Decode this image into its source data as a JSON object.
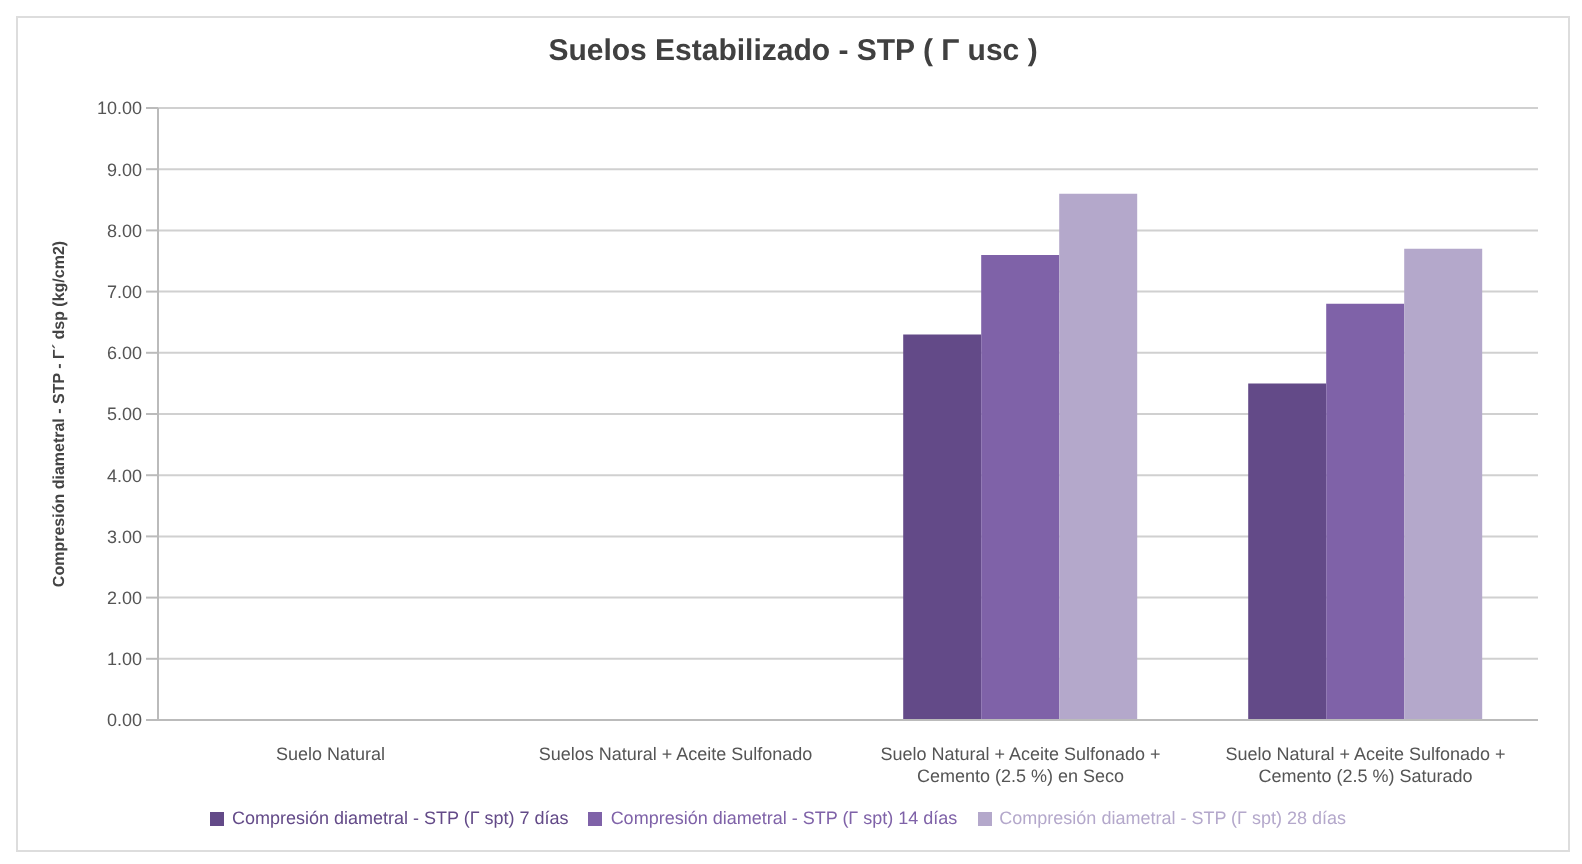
{
  "chart_data": {
    "type": "bar",
    "title": "Suelos Estabilizado - STP ( Γ usc )",
    "ylabel": "Compresión diametral - STP - Γ´ dsp (kg/cm2)",
    "categories": [
      "Suelo Natural",
      "Suelos Natural + Aceite Sulfonado",
      "Suelo Natural + Aceite Sulfonado + Cemento (2.5 %) en Seco",
      "Suelo Natural + Aceite Sulfonado + Cemento (2.5 %) Saturado"
    ],
    "series": [
      {
        "name": "Compresión diametral - STP (Γ spt) 7 días",
        "color": "#634a88",
        "values": [
          0,
          0,
          6.3,
          5.5
        ]
      },
      {
        "name": "Compresión diametral - STP (Γ spt) 14 días",
        "color": "#7f62a8",
        "values": [
          0,
          0,
          7.6,
          6.8
        ]
      },
      {
        "name": "Compresión diametral - STP (Γ spt) 28 días",
        "color": "#b4a8cb",
        "values": [
          0,
          0,
          8.6,
          7.7
        ]
      }
    ],
    "ylim": [
      0,
      10
    ],
    "yticks": [
      {
        "value": 0,
        "label": "0.00"
      },
      {
        "value": 1,
        "label": "1.00"
      },
      {
        "value": 2,
        "label": "2.00"
      },
      {
        "value": 3,
        "label": "3.00"
      },
      {
        "value": 4,
        "label": "4.00"
      },
      {
        "value": 5,
        "label": "5.00"
      },
      {
        "value": 6,
        "label": "6.00"
      },
      {
        "value": 7,
        "label": "7.00"
      },
      {
        "value": 8,
        "label": "8.00"
      },
      {
        "value": 9,
        "label": "9.00"
      },
      {
        "value": 10,
        "label": "10.00"
      }
    ],
    "grid": "y",
    "legend": "bottom"
  }
}
